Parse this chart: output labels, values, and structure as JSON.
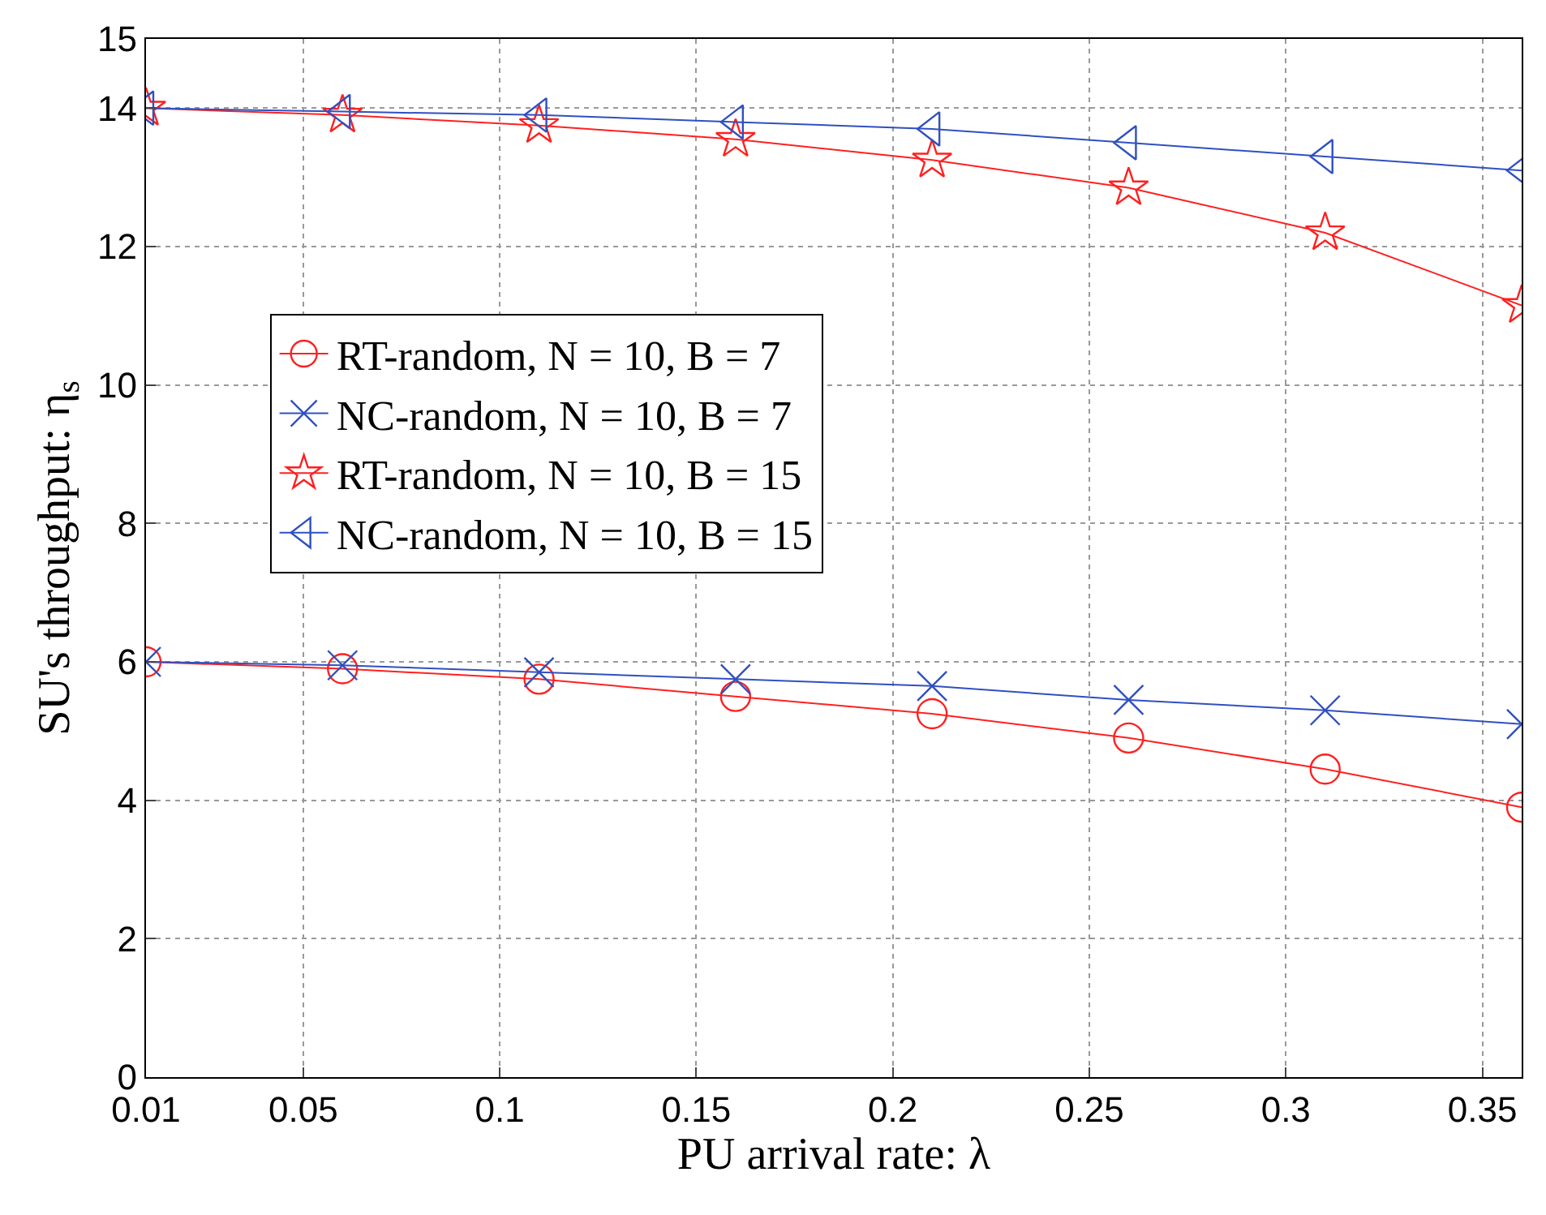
{
  "chart_data": {
    "type": "line",
    "xlabel": "PU arrival rate: λ",
    "ylabel": "SU's throughput: η$_{s}$",
    "x": [
      0.01,
      0.06,
      0.11,
      0.16,
      0.21,
      0.26,
      0.31,
      0.36
    ],
    "xlim": [
      0.01,
      0.36
    ],
    "xticks": [
      0.01,
      0.05,
      0.1,
      0.15,
      0.2,
      0.25,
      0.3,
      0.35
    ],
    "ylim": [
      0,
      15
    ],
    "yticks": [
      0,
      2,
      4,
      6,
      8,
      10,
      12,
      14,
      15
    ],
    "grid": true,
    "legend": "left",
    "line_style": "solid",
    "series": [
      {
        "name": "RT-random, N = 10, B = 7",
        "color": "#ff2020",
        "marker": "circle",
        "values": [
          6.0,
          5.9,
          5.75,
          5.5,
          5.25,
          4.9,
          4.45,
          3.9
        ]
      },
      {
        "name": "NC-random, N = 10, B = 7",
        "color": "#3050c0",
        "marker": "cross",
        "values": [
          6.0,
          5.95,
          5.85,
          5.75,
          5.65,
          5.45,
          5.3,
          5.1
        ]
      },
      {
        "name": "RT-random, N = 10, B = 15",
        "color": "#ff2020",
        "marker": "star",
        "values": [
          14.0,
          13.9,
          13.75,
          13.55,
          13.25,
          12.85,
          12.2,
          11.15
        ]
      },
      {
        "name": "NC-random, N = 10, B = 15",
        "color": "#3050c0",
        "marker": "triangle",
        "values": [
          14.0,
          13.95,
          13.9,
          13.8,
          13.7,
          13.5,
          13.3,
          13.1
        ]
      }
    ]
  }
}
